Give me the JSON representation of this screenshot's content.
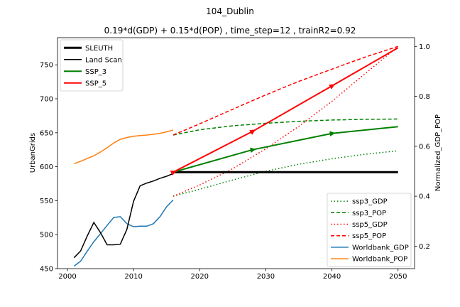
{
  "chart_data": {
    "type": "line",
    "suptitle": "104_Dublin",
    "title": "0.19*d(GDP) + 0.15*d(POP) , time_step=12 , trainR2=0.92",
    "xlabel": "",
    "ylabel_left": "UrbanGrids",
    "ylabel_right": "Normalized_GDP_POP",
    "xlim": [
      1998.5,
      2052.5
    ],
    "ylim_left": [
      450,
      790
    ],
    "ylim_right": [
      0.11,
      1.035
    ],
    "xticks": [
      2000,
      2010,
      2020,
      2030,
      2040,
      2050
    ],
    "yticks_left": [
      450,
      500,
      550,
      600,
      650,
      700,
      750
    ],
    "yticks_right": [
      0.2,
      0.4,
      0.6,
      0.8,
      1.0
    ],
    "grid": false,
    "left_legend": {
      "placement": "top-left",
      "entries": [
        "SLEUTH",
        "Land Scan",
        "SSP_3",
        "SSP_5"
      ]
    },
    "right_legend": {
      "placement": "bottom-right",
      "entries": [
        "ssp3_GDP",
        "ssp3_POP",
        "ssp5_GDP",
        "ssp5_POP",
        "Worldbank_GDP",
        "Worldbank_POP"
      ]
    },
    "series_left": [
      {
        "name": "SLEUTH",
        "color": "#000000",
        "width": 3,
        "dash": "",
        "x": [
          2016,
          2050
        ],
        "y": [
          592,
          592
        ]
      },
      {
        "name": "Land Scan",
        "color": "#000000",
        "width": 1.5,
        "dash": "",
        "x": [
          2001,
          2002,
          2003,
          2004,
          2005,
          2006,
          2007,
          2008,
          2009,
          2010,
          2011,
          2012,
          2013,
          2014,
          2015,
          2016
        ],
        "y": [
          466,
          476,
          498,
          518,
          503,
          485,
          485,
          486,
          508,
          549,
          572,
          576,
          579,
          583,
          586,
          590
        ]
      },
      {
        "name": "SSP_3",
        "color": "#008000",
        "width": 2,
        "dash": "",
        "x": [
          2016,
          2028,
          2040,
          2050
        ],
        "y": [
          592,
          625,
          649,
          659
        ],
        "markers": [
          2028,
          2040
        ]
      },
      {
        "name": "SSP_5",
        "color": "#ff0000",
        "width": 2,
        "dash": "",
        "x": [
          2016,
          2028,
          2040,
          2050
        ],
        "y": [
          592,
          652,
          719,
          775
        ],
        "markers": [
          2016,
          2028,
          2040
        ]
      }
    ],
    "series_right": [
      {
        "name": "ssp3_GDP",
        "color": "#008000",
        "dash": "1.5,3",
        "x": [
          2016,
          2020,
          2025,
          2030,
          2035,
          2040,
          2045,
          2050
        ],
        "y": [
          0.4,
          0.428,
          0.465,
          0.5,
          0.528,
          0.55,
          0.568,
          0.582
        ]
      },
      {
        "name": "ssp3_POP",
        "color": "#008000",
        "dash": "5,3",
        "x": [
          2016,
          2020,
          2025,
          2030,
          2035,
          2040,
          2045,
          2050
        ],
        "y": [
          0.645,
          0.666,
          0.682,
          0.692,
          0.7,
          0.705,
          0.708,
          0.709
        ]
      },
      {
        "name": "ssp5_GDP",
        "color": "#ff0000",
        "dash": "1.5,3",
        "x": [
          2016,
          2020,
          2025,
          2030,
          2035,
          2040,
          2045,
          2050
        ],
        "y": [
          0.4,
          0.445,
          0.51,
          0.59,
          0.68,
          0.78,
          0.89,
          1.0
        ]
      },
      {
        "name": "ssp5_POP",
        "color": "#ff0000",
        "dash": "5,3",
        "x": [
          2016,
          2020,
          2025,
          2030,
          2035,
          2040,
          2045,
          2050
        ],
        "y": [
          0.645,
          0.69,
          0.748,
          0.806,
          0.86,
          0.909,
          0.957,
          1.0
        ]
      },
      {
        "name": "Worldbank_GDP",
        "color": "#1f77b4",
        "dash": "",
        "x": [
          2001,
          2002,
          2003,
          2004,
          2005,
          2006,
          2007,
          2008,
          2009,
          2010,
          2011,
          2012,
          2013,
          2014,
          2015,
          2016
        ],
        "y": [
          0.12,
          0.14,
          0.18,
          0.218,
          0.25,
          0.283,
          0.315,
          0.318,
          0.29,
          0.278,
          0.28,
          0.28,
          0.29,
          0.318,
          0.358,
          0.385
        ]
      },
      {
        "name": "Worldbank_POP",
        "color": "#ff7f0e",
        "dash": "",
        "x": [
          2001,
          2002,
          2003,
          2004,
          2005,
          2006,
          2007,
          2008,
          2009,
          2010,
          2011,
          2012,
          2013,
          2014,
          2015,
          2016
        ],
        "y": [
          0.53,
          0.54,
          0.551,
          0.562,
          0.577,
          0.594,
          0.613,
          0.628,
          0.635,
          0.64,
          0.643,
          0.645,
          0.648,
          0.652,
          0.658,
          0.665
        ]
      }
    ]
  }
}
